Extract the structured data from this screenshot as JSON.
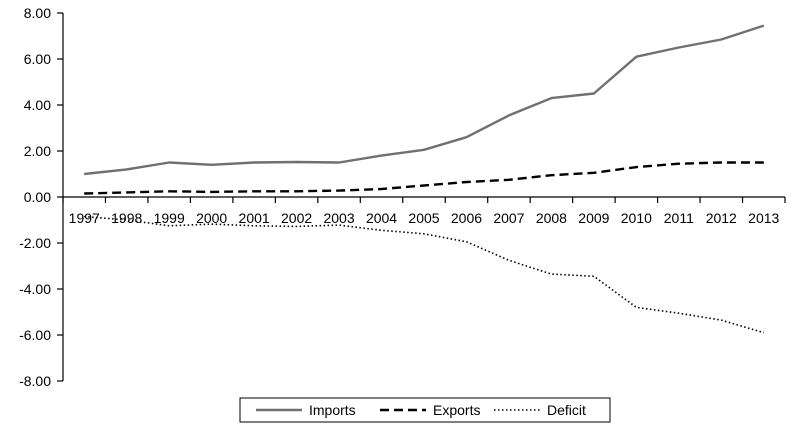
{
  "chart_data": {
    "type": "line",
    "title": "",
    "xlabel": "",
    "ylabel": "",
    "x": [
      "1997",
      "1998",
      "1999",
      "2000",
      "2001",
      "2002",
      "2003",
      "2004",
      "2005",
      "2006",
      "2007",
      "2008",
      "2009",
      "2010",
      "2011",
      "2012",
      "2013"
    ],
    "ylim": [
      -8,
      8
    ],
    "yticks": [
      8,
      6,
      4,
      2,
      0,
      -2,
      -4,
      -6,
      -8
    ],
    "ytick_labels": [
      "8.00",
      "6.00",
      "4.00",
      "2.00",
      "0.00",
      "-2.00",
      "-4.00",
      "-6.00",
      "-8.00"
    ],
    "grid": false,
    "legend_position": "bottom",
    "series": [
      {
        "name": "Imports",
        "color": "#707070",
        "style": "solid",
        "values": [
          1.0,
          1.2,
          1.5,
          1.4,
          1.5,
          1.52,
          1.5,
          1.8,
          2.05,
          2.6,
          3.55,
          4.3,
          4.5,
          6.1,
          6.5,
          6.85,
          7.45
        ]
      },
      {
        "name": "Exports",
        "color": "#000000",
        "style": "dashed",
        "values": [
          0.15,
          0.2,
          0.25,
          0.22,
          0.25,
          0.25,
          0.28,
          0.35,
          0.5,
          0.65,
          0.75,
          0.95,
          1.05,
          1.3,
          1.45,
          1.5,
          1.5
        ]
      },
      {
        "name": "Deficit",
        "color": "#000000",
        "style": "dotted",
        "values": [
          -0.85,
          -1.0,
          -1.25,
          -1.18,
          -1.25,
          -1.28,
          -1.22,
          -1.45,
          -1.6,
          -1.95,
          -2.75,
          -3.35,
          -3.45,
          -4.8,
          -5.05,
          -5.35,
          -5.9
        ]
      }
    ]
  }
}
